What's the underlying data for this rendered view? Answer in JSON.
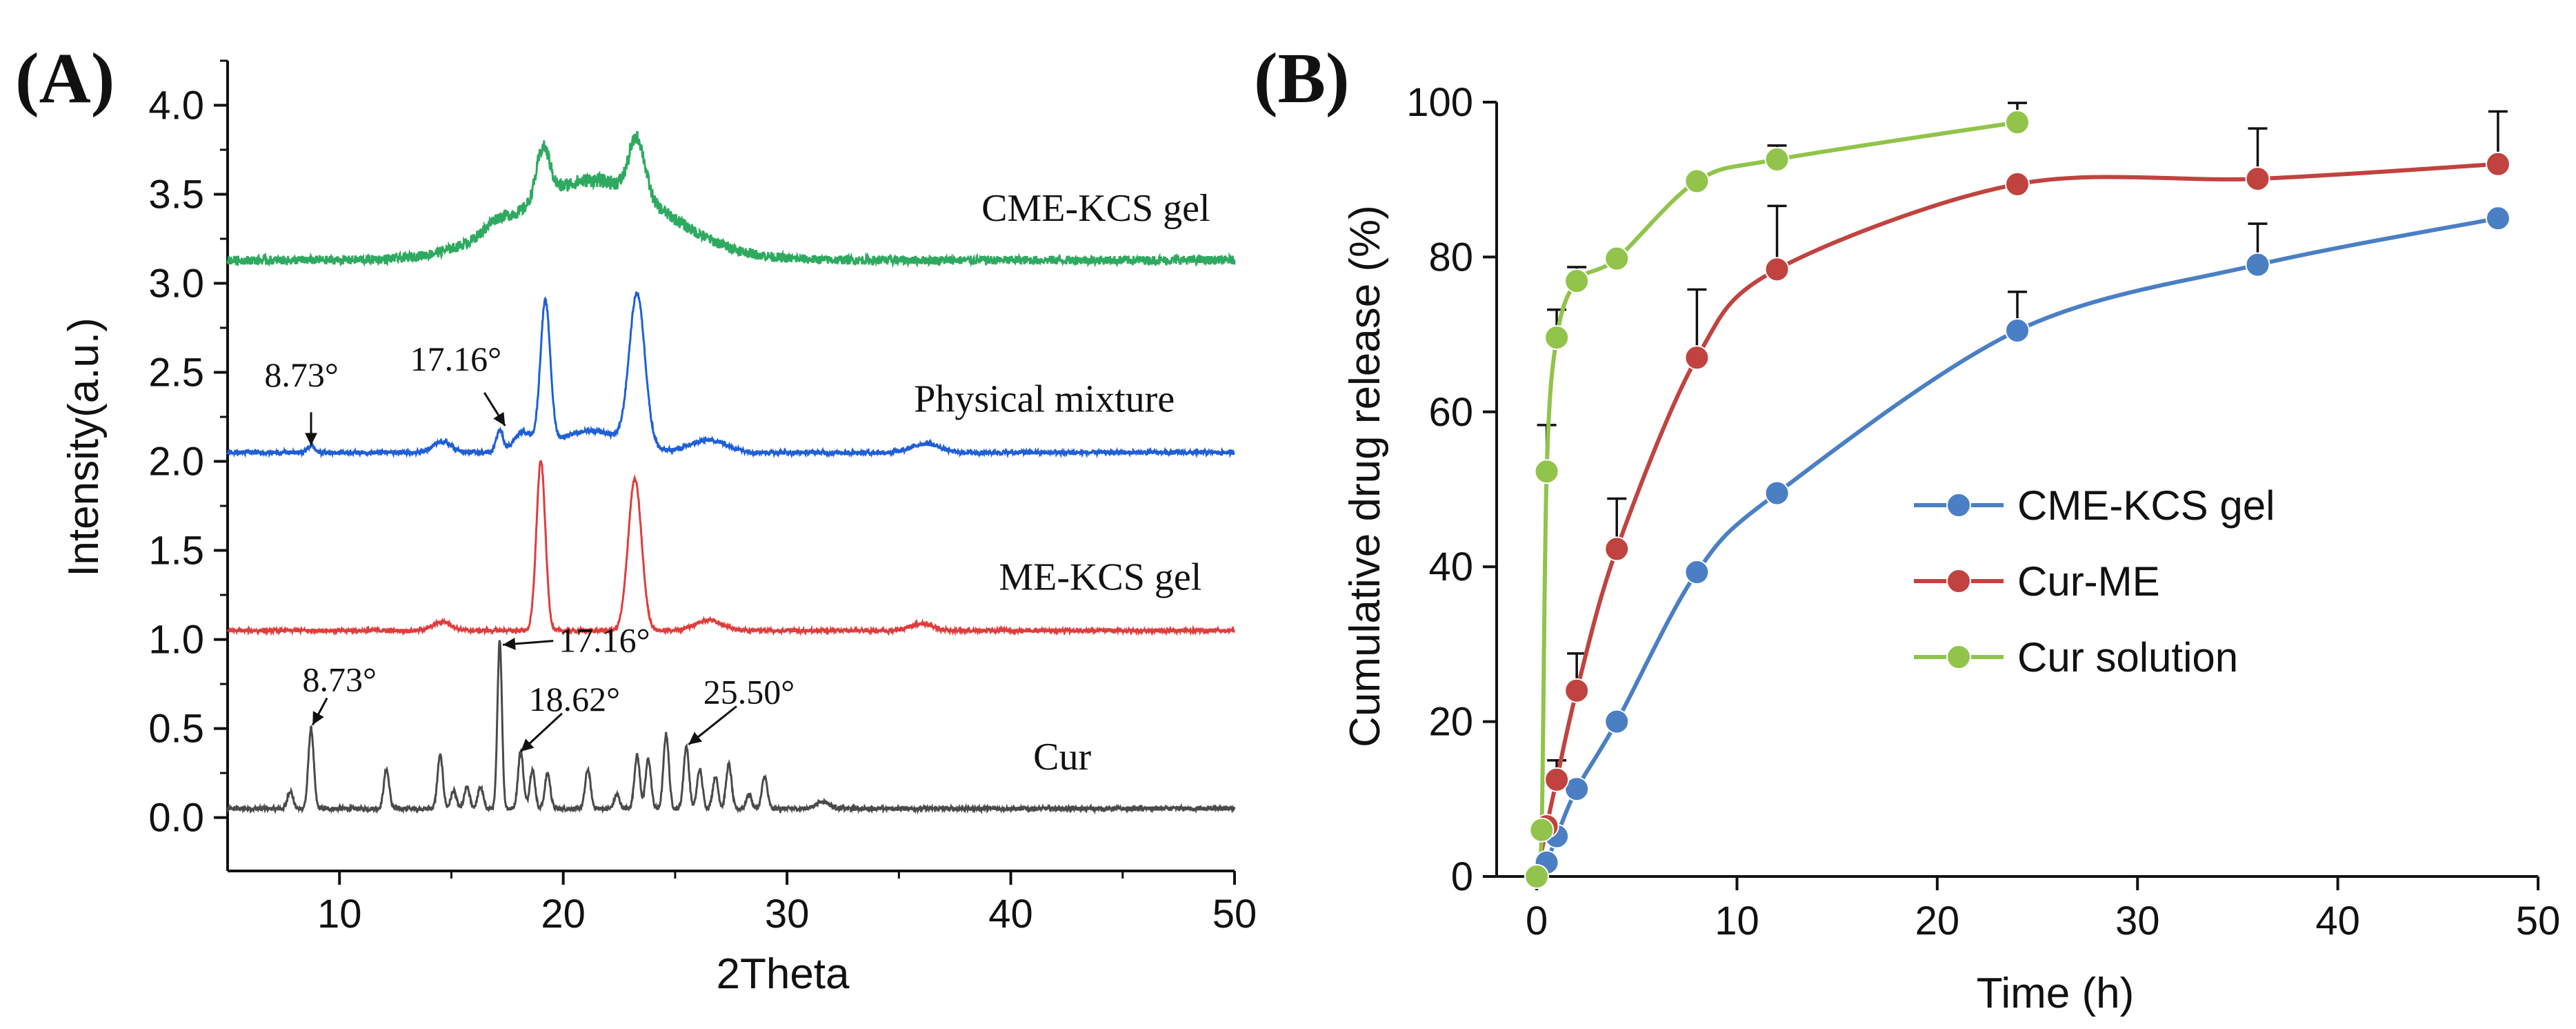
{
  "chart_data": [
    {
      "type": "line",
      "panel_label": "(A)",
      "title": "",
      "xlabel": "2Theta",
      "ylabel": "Intensity(a.u.)",
      "xlim": [
        5,
        50
      ],
      "ylim": [
        -0.3,
        4.25
      ],
      "x_ticks": [
        10,
        20,
        30,
        40,
        50
      ],
      "x_tick_labels": [
        "10",
        "20",
        "30",
        "40",
        "50"
      ],
      "y_ticks": [
        0,
        0.5,
        1,
        1.5,
        2,
        2.5,
        3,
        3.5,
        4
      ],
      "y_tick_labels": [
        "0.0",
        "0.5",
        "1.0",
        "1.5",
        "2.0",
        "2.5",
        "3.0",
        "3.5",
        "4.0"
      ],
      "grid": false,
      "series": [
        {
          "name": "Cur",
          "color": "#4a4a4a",
          "baseline": 0.05,
          "noise": 0.012,
          "peaks": [
            {
              "x": 7.8,
              "h": 0.1,
              "w": 0.12
            },
            {
              "x": 8.73,
              "h": 0.45,
              "w": 0.12
            },
            {
              "x": 12.1,
              "h": 0.22,
              "w": 0.12
            },
            {
              "x": 14.5,
              "h": 0.3,
              "w": 0.12
            },
            {
              "x": 15.1,
              "h": 0.1,
              "w": 0.12
            },
            {
              "x": 15.7,
              "h": 0.12,
              "w": 0.12
            },
            {
              "x": 16.3,
              "h": 0.12,
              "w": 0.12
            },
            {
              "x": 17.16,
              "h": 0.95,
              "w": 0.1
            },
            {
              "x": 18.1,
              "h": 0.32,
              "w": 0.12
            },
            {
              "x": 18.62,
              "h": 0.22,
              "w": 0.12
            },
            {
              "x": 19.3,
              "h": 0.2,
              "w": 0.12
            },
            {
              "x": 21.1,
              "h": 0.22,
              "w": 0.12
            },
            {
              "x": 22.4,
              "h": 0.08,
              "w": 0.12
            },
            {
              "x": 23.3,
              "h": 0.3,
              "w": 0.12
            },
            {
              "x": 23.8,
              "h": 0.28,
              "w": 0.12
            },
            {
              "x": 24.6,
              "h": 0.42,
              "w": 0.12
            },
            {
              "x": 25.5,
              "h": 0.35,
              "w": 0.12
            },
            {
              "x": 26.1,
              "h": 0.22,
              "w": 0.12
            },
            {
              "x": 26.8,
              "h": 0.18,
              "w": 0.12
            },
            {
              "x": 27.4,
              "h": 0.25,
              "w": 0.12
            },
            {
              "x": 28.3,
              "h": 0.08,
              "w": 0.12
            },
            {
              "x": 29.0,
              "h": 0.18,
              "w": 0.12
            },
            {
              "x": 31.6,
              "h": 0.04,
              "w": 0.3
            }
          ],
          "label": "Cur",
          "label_pos": [
            42.3,
            0.27
          ]
        },
        {
          "name": "ME-KCS gel",
          "color": "#e03c3c",
          "baseline": 1.05,
          "noise": 0.01,
          "peaks": [
            {
              "x": 19.0,
              "h": 0.95,
              "w": 0.2
            },
            {
              "x": 23.2,
              "h": 0.85,
              "w": 0.3
            },
            {
              "x": 14.6,
              "h": 0.05,
              "w": 0.4
            },
            {
              "x": 26.5,
              "h": 0.06,
              "w": 0.6
            },
            {
              "x": 36.0,
              "h": 0.04,
              "w": 0.5
            }
          ],
          "label": "ME-KCS gel",
          "label_pos": [
            44.0,
            1.28
          ]
        },
        {
          "name": "Physical mixture",
          "color": "#1f5fd6",
          "baseline": 2.05,
          "noise": 0.012,
          "peaks": [
            {
              "x": 8.73,
              "h": 0.04,
              "w": 0.15
            },
            {
              "x": 14.6,
              "h": 0.06,
              "w": 0.4
            },
            {
              "x": 17.16,
              "h": 0.12,
              "w": 0.15
            },
            {
              "x": 18.2,
              "h": 0.1,
              "w": 0.4
            },
            {
              "x": 19.2,
              "h": 0.8,
              "w": 0.22
            },
            {
              "x": 21.2,
              "h": 0.12,
              "w": 1.5
            },
            {
              "x": 23.3,
              "h": 0.85,
              "w": 0.35
            },
            {
              "x": 26.5,
              "h": 0.07,
              "w": 0.8
            },
            {
              "x": 36.2,
              "h": 0.05,
              "w": 0.6
            }
          ],
          "label": "Physical mixture",
          "label_pos": [
            41.5,
            2.28
          ]
        },
        {
          "name": "CME-KCS gel",
          "color": "#2eaa60",
          "baseline": 3.13,
          "noise": 0.025,
          "peaks": [
            {
              "x": 21.3,
              "h": 0.45,
              "w": 3.2
            },
            {
              "x": 19.1,
              "h": 0.28,
              "w": 0.3
            },
            {
              "x": 23.3,
              "h": 0.32,
              "w": 0.35
            },
            {
              "x": 17.0,
              "h": 0.05,
              "w": 0.5
            }
          ],
          "label": "CME-KCS gel",
          "label_pos": [
            43.8,
            3.35
          ]
        }
      ],
      "annotations": [
        {
          "text": "8.73°",
          "tip": [
            8.73,
            2.09
          ],
          "label_at": [
            8.3,
            2.42
          ],
          "target": "Physical mixture"
        },
        {
          "text": "17.16°",
          "tip": [
            17.4,
            2.2
          ],
          "label_at": [
            15.2,
            2.51
          ],
          "target": "Physical mixture"
        },
        {
          "text": "8.73°",
          "tip": [
            8.8,
            0.52
          ],
          "label_at": [
            10.0,
            0.71
          ],
          "target": "Cur"
        },
        {
          "text": "17.16°",
          "tip": [
            17.3,
            0.97
          ],
          "label_at": [
            19.8,
            0.93
          ],
          "target": "Cur"
        },
        {
          "text": "18.62°",
          "tip": [
            18.1,
            0.37
          ],
          "label_at": [
            20.5,
            0.6
          ],
          "target": "Cur"
        },
        {
          "text": "25.50°",
          "tip": [
            25.6,
            0.41
          ],
          "label_at": [
            28.3,
            0.64
          ],
          "target": "Cur"
        }
      ]
    },
    {
      "type": "line",
      "panel_label": "(B)",
      "title": "",
      "xlabel": "Time (h)",
      "ylabel": "Cumulative drug release (%)",
      "xlim": [
        -2,
        50
      ],
      "ylim": [
        0,
        100
      ],
      "x_ticks": [
        0,
        10,
        20,
        30,
        40,
        50
      ],
      "x_tick_labels": [
        "0",
        "10",
        "20",
        "30",
        "40",
        "50"
      ],
      "y_ticks": [
        0,
        20,
        40,
        60,
        80,
        100
      ],
      "y_tick_labels": [
        "0",
        "20",
        "40",
        "60",
        "80",
        "100"
      ],
      "grid": false,
      "legend": "center-right",
      "series": [
        {
          "name": "CME-KCS gel",
          "color": "#4a7fc4",
          "x": [
            0,
            0.5,
            1,
            2,
            4,
            8,
            12,
            24,
            36,
            48
          ],
          "y": [
            0,
            1.8,
            5.2,
            11.3,
            20.0,
            39.3,
            49.5,
            70.5,
            79.0,
            85.0
          ],
          "err": [
            0,
            0,
            0,
            0,
            0,
            0,
            0,
            5.0,
            5.3,
            0
          ]
        },
        {
          "name": "Cur-ME",
          "color": "#c0433f",
          "x": [
            0,
            0.5,
            1,
            2,
            4,
            8,
            12,
            24,
            36,
            48
          ],
          "y": [
            0,
            6.5,
            12.5,
            24.0,
            42.3,
            67.0,
            78.4,
            89.4,
            90.1,
            92.0
          ],
          "err": [
            0,
            0,
            2.5,
            4.8,
            6.5,
            8.8,
            8.2,
            0,
            6.5,
            6.8
          ]
        },
        {
          "name": "Cur solution",
          "color": "#92c34a",
          "x": [
            0,
            0.25,
            0.5,
            1,
            2,
            4,
            8,
            12,
            24
          ],
          "y": [
            0,
            6.0,
            52.3,
            69.6,
            76.9,
            79.8,
            89.8,
            92.6,
            97.4
          ],
          "err": [
            0,
            0,
            6.0,
            3.6,
            1.8,
            0.6,
            0.8,
            1.8,
            2.5
          ]
        }
      ]
    }
  ]
}
